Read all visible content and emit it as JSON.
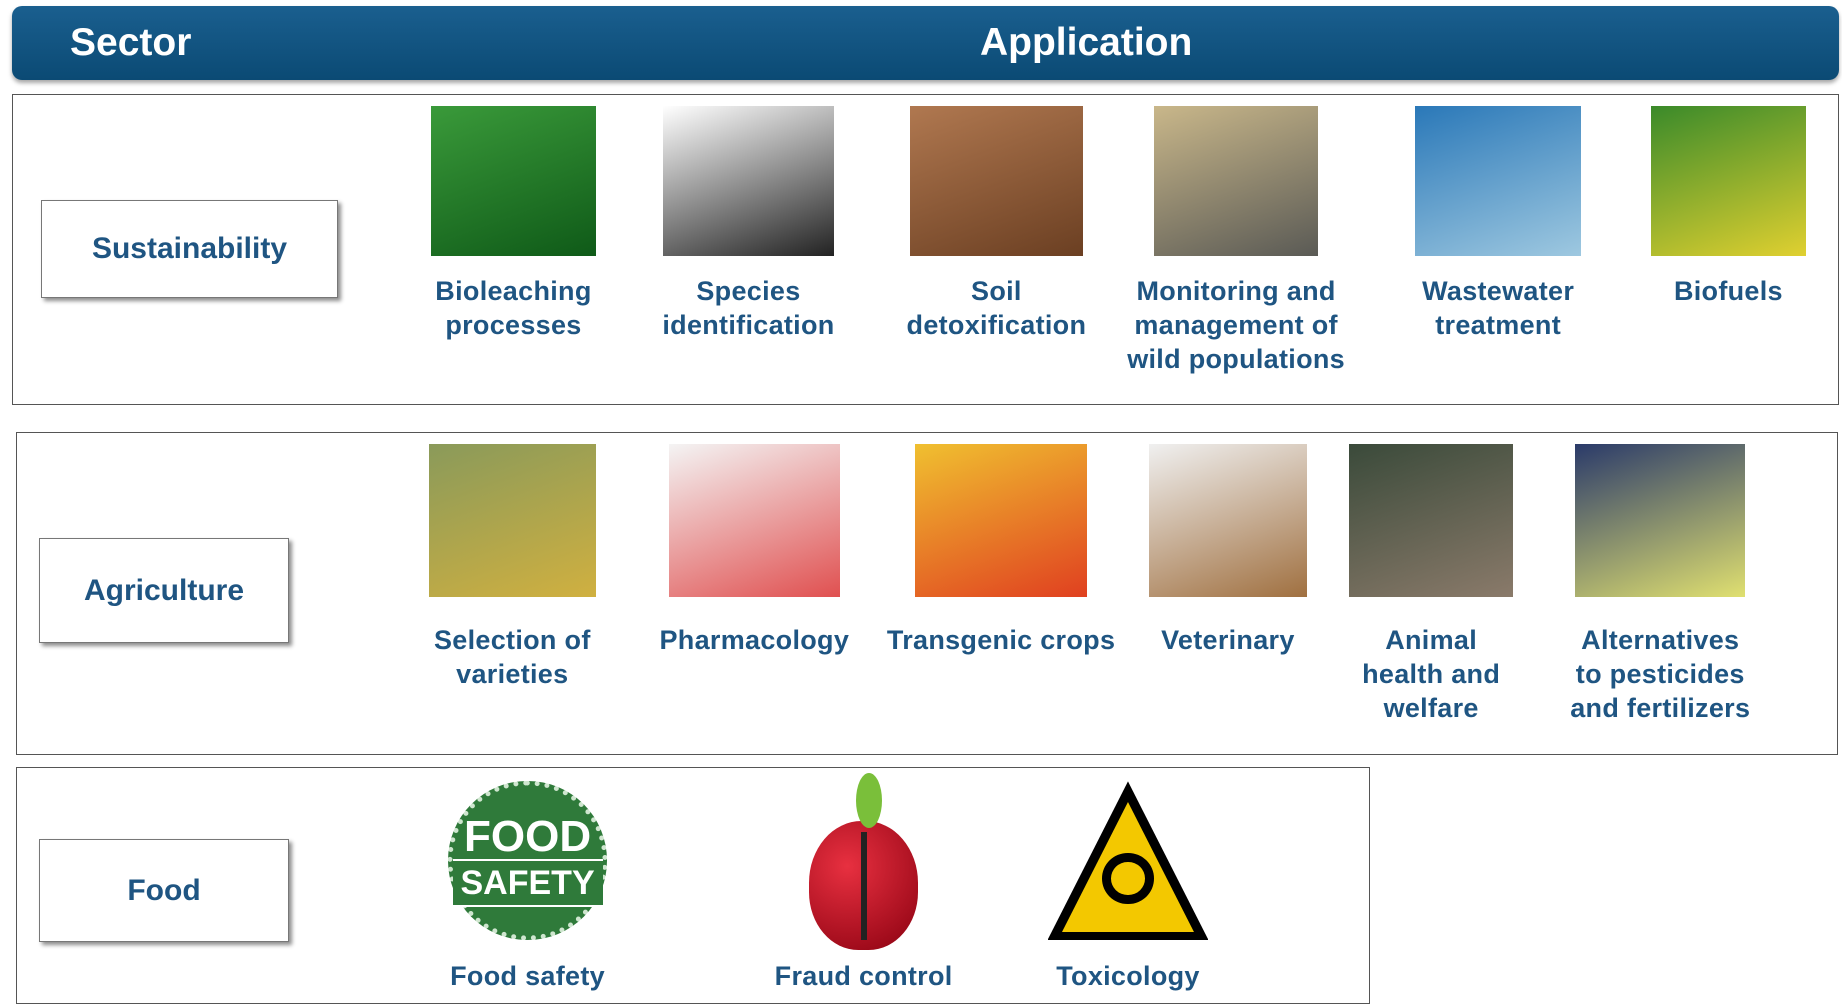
{
  "header": {
    "sector": "Sector",
    "application": "Application"
  },
  "sectors": [
    {
      "name": "Sustainability",
      "applications": [
        {
          "label_lines": [
            "Bioleaching",
            "processes"
          ]
        },
        {
          "label_lines": [
            "Species",
            "identification"
          ]
        },
        {
          "label_lines": [
            "Soil",
            "detoxification"
          ]
        },
        {
          "label_lines": [
            "Monitoring and",
            "management of",
            "wild populations"
          ]
        },
        {
          "label_lines": [
            "Wastewater",
            "treatment"
          ]
        },
        {
          "label_lines": [
            "Biofuels"
          ]
        }
      ]
    },
    {
      "name": "Agriculture",
      "applications": [
        {
          "label_lines": [
            "Selection of",
            "varieties"
          ]
        },
        {
          "label_lines": [
            "Pharmacology"
          ]
        },
        {
          "label_lines": [
            "Transgenic crops"
          ]
        },
        {
          "label_lines": [
            "Veterinary"
          ]
        },
        {
          "label_lines": [
            "Animal",
            "health and",
            "welfare"
          ]
        },
        {
          "label_lines": [
            "Alternatives",
            "to pesticides",
            "and fertilizers"
          ]
        }
      ]
    },
    {
      "name": "Food",
      "applications": [
        {
          "label_lines": [
            "Food safety"
          ],
          "icon_text": [
            "FOOD",
            "SAFETY"
          ]
        },
        {
          "label_lines": [
            "Fraud control"
          ]
        },
        {
          "label_lines": [
            "Toxicology"
          ]
        }
      ]
    }
  ]
}
